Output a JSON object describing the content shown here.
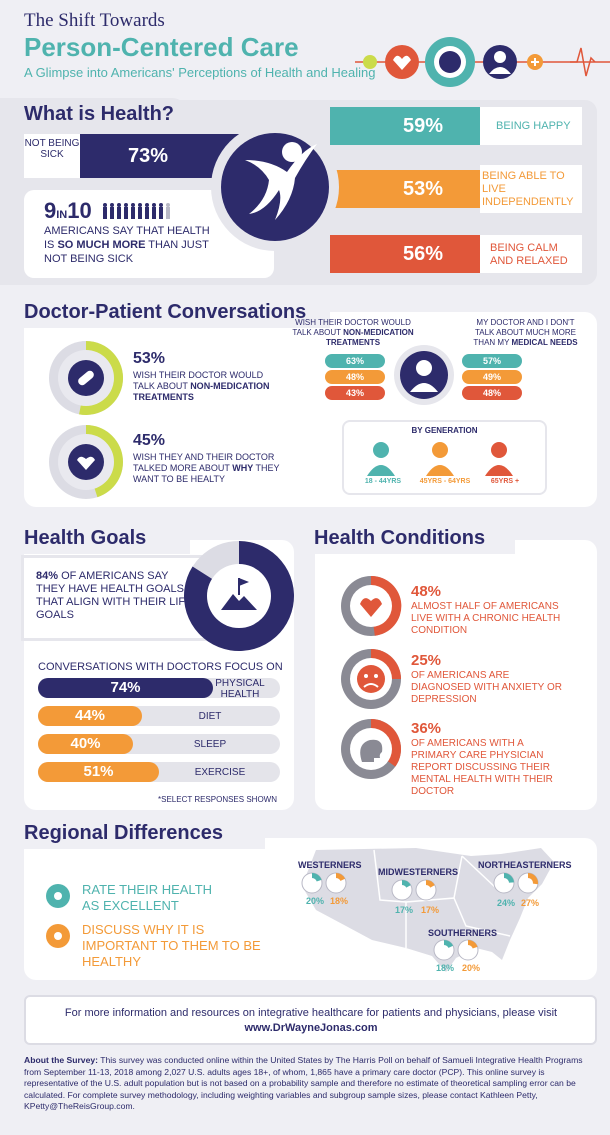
{
  "header": {
    "top": "The Shift Towards",
    "title": "Person-Centered Care",
    "subtitle": "A Glimpse into Americans' Perceptions of Health and Healing"
  },
  "colors": {
    "navy": "#2d2b6b",
    "teal": "#4fb3ae",
    "orange": "#f39a38",
    "red": "#e0573a",
    "lime": "#cbdb4a"
  },
  "what_is_health": {
    "title": "What is Health?",
    "not_sick": {
      "label": "NOT BEING SICK",
      "pct": "73%"
    },
    "nine_ten": {
      "big": "9",
      "in": "IN",
      "ten": "10",
      "text_a": "AMERICANS SAY THAT HEALTH IS ",
      "text_b": "SO MUCH MORE",
      "text_c": " THAN JUST NOT BEING SICK"
    },
    "happy": {
      "pct": "59%",
      "label": "BEING HAPPY"
    },
    "independent": {
      "pct": "53%",
      "label": "BEING ABLE TO LIVE INDEPENDENTLY"
    },
    "calm": {
      "pct": "56%",
      "label": "BEING CALM AND RELAXED"
    }
  },
  "doctor_patient": {
    "title": "Doctor-Patient Conversations",
    "stat1": {
      "pct": "53%",
      "text_a": "WISH THEIR DOCTOR WOULD TALK ABOUT ",
      "text_b": "NON-MEDICATION TREATMENTS",
      "value": 0.53
    },
    "stat2": {
      "pct": "45%",
      "text_a": "WISH THEY AND THEIR DOCTOR TALKED MORE ABOUT ",
      "text_b": "WHY",
      "text_c": " THEY WANT TO BE HEALTY",
      "value": 0.45
    },
    "left_head_a": "WISH THEIR DOCTOR WOULD TALK ABOUT ",
    "left_head_b": "NON-MEDICATION TREATMENTS",
    "right_head_a": "MY DOCTOR AND I DON'T TALK ABOUT MUCH MORE THAN MY ",
    "right_head_b": "MEDICAL NEEDS",
    "left_values": [
      "63%",
      "48%",
      "43%"
    ],
    "right_values": [
      "57%",
      "49%",
      "48%"
    ],
    "by_generation": "BY GENERATION",
    "generations": [
      "18 - 44YRS",
      "45YRS - 64YRS",
      "65YRS +"
    ]
  },
  "health_goals": {
    "title": "Health Goals",
    "intro_pct": "84%",
    "intro_text": " OF AMERICANS SAY THEY HAVE HEALTH GOALS THAT ALIGN WITH THEIR LIFE GOALS",
    "donut_value": 0.84,
    "focus_title": "CONVERSATIONS WITH DOCTORS FOCUS ON",
    "items": [
      {
        "pct": "74%",
        "label": "PHYSICAL HEALTH"
      },
      {
        "pct": "44%",
        "label": "DIET"
      },
      {
        "pct": "40%",
        "label": "SLEEP"
      },
      {
        "pct": "51%",
        "label": "EXERCISE"
      }
    ],
    "footnote": "*SELECT RESPONSES SHOWN"
  },
  "health_conditions": {
    "title": "Health Conditions",
    "items": [
      {
        "pct": "48%",
        "text": "ALMOST HALF OF AMERICANS LIVE WITH A CHRONIC HEALTH CONDITION"
      },
      {
        "pct": "25%",
        "text": "OF AMERICANS ARE DIAGNOSED WITH ANXIETY OR DEPRESSION"
      },
      {
        "pct": "36%",
        "text": "OF AMERICANS WITH A PRIMARY CARE PHYSICIAN REPORT DISCUSSING THEIR MENTAL HEALTH WITH THEIR DOCTOR"
      }
    ]
  },
  "regional": {
    "title": "Regional Differences",
    "legend": [
      "RATE THEIR HEALTH AS EXCELLENT",
      "DISCUSS WHY IT IS IMPORTANT TO THEM TO BE HEALTHY"
    ],
    "regions": [
      {
        "name": "WESTERNERS",
        "a": "20%",
        "b": "18%"
      },
      {
        "name": "MIDWESTERNERS",
        "a": "17%",
        "b": "17%"
      },
      {
        "name": "NORTHEASTERNERS",
        "a": "24%",
        "b": "27%"
      },
      {
        "name": "SOUTHERNERS",
        "a": "18%",
        "b": "20%"
      }
    ]
  },
  "more_info": {
    "text": "For more information and resources on integrative healthcare for patients and physicians, please visit ",
    "url": "www.DrWayneJonas.com"
  },
  "about": {
    "label": "About the Survey:",
    "text": " This survey was conducted online within the United States by The Harris Poll on behalf of Samueli Integrative Health Programs from September 11-13, 2018 among 2,027 U.S. adults ages 18+, of whom, 1,865 have a primary care doctor (PCP). This online survey is representative of the U.S. adult population but is not based on a probability sample and therefore no estimate of theoretical sampling error can be calculated. For complete survey methodology, including weighting variables and subgroup sample sizes, please contact Kathleen Petty, KPetty@TheReisGroup.com."
  }
}
